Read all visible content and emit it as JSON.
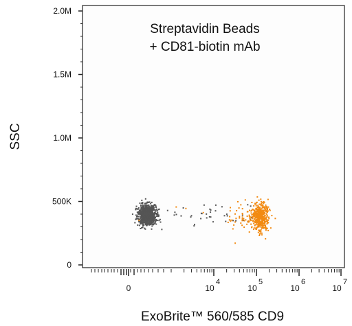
{
  "chart_data": {
    "type": "scatter",
    "title": "",
    "annotation_lines": [
      "Streptavidin Beads",
      "+ CD81-biotin mAb"
    ],
    "xlabel": "ExoBrite™ 560/585 CD9",
    "ylabel": "SSC",
    "x_scale": "biexponential",
    "x_ticks": [
      {
        "label": "0",
        "base": "0",
        "exp": ""
      },
      {
        "label": "10^4",
        "base": "10",
        "exp": "4"
      },
      {
        "label": "10^5",
        "base": "10",
        "exp": "5"
      },
      {
        "label": "10^6",
        "base": "10",
        "exp": "6"
      },
      {
        "label": "10^7",
        "base": "10",
        "exp": "7"
      }
    ],
    "y_ticks": [
      "0",
      "500K",
      "1.0M",
      "1.5M",
      "2.0M"
    ],
    "ylim": [
      0,
      2000000
    ],
    "grid": false,
    "series": [
      {
        "color": "#555555",
        "x_center": 0,
        "y_center": 400000,
        "description_count": 900
      },
      {
        "color": "#f28a12",
        "x_center": 150000,
        "y_center": 390000,
        "description_count": 420
      }
    ]
  }
}
